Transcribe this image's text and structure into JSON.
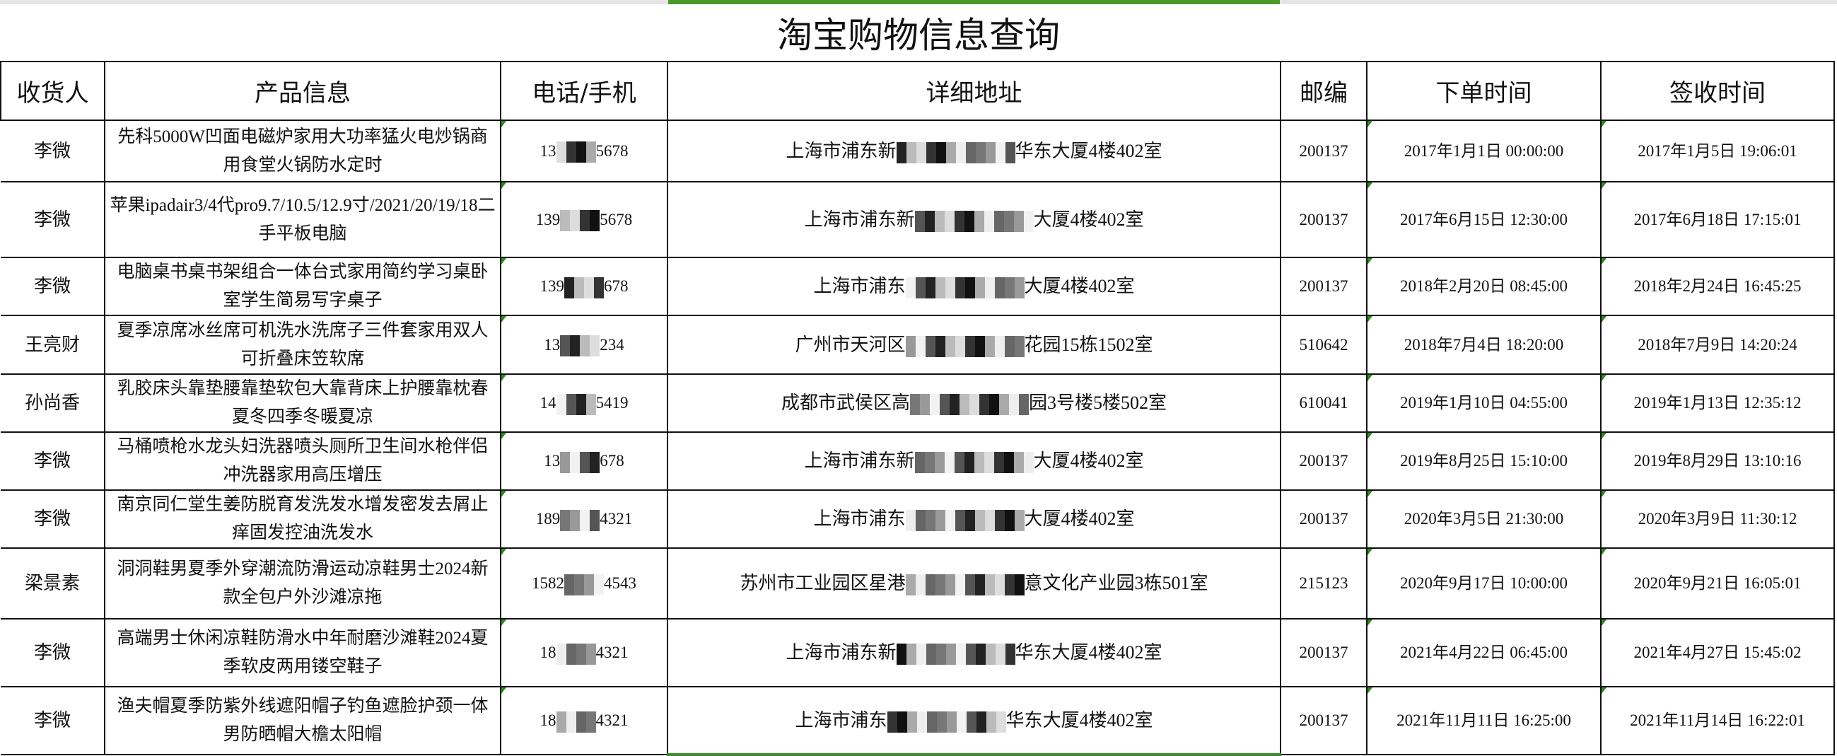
{
  "accent_color": "#4a9a2a",
  "title": "淘宝购物信息查询",
  "headers": [
    "收货人",
    "产品信息",
    "电话/手机",
    "详细地址",
    "邮编",
    "下单时间",
    "签收时间"
  ],
  "rows": [
    {
      "name": "李微",
      "product": "先科5000W凹面电磁炉家用大功率猛火电炒锅商用食堂火锅防水定时",
      "phone_prefix": "13",
      "phone_suffix": "5678",
      "addr_prefix": "上海市浦东新",
      "addr_suffix": "华东大厦4楼402室",
      "zip": "200137",
      "order_time": "2017年1月1日 00:00:00",
      "sign_time": "2017年1月5日 19:06:01"
    },
    {
      "name": "李微",
      "product": "苹果ipadair3/4代pro9.7/10.5/12.9寸/2021/20/19/18二手平板电脑",
      "phone_prefix": "139",
      "phone_suffix": "5678",
      "addr_prefix": "上海市浦东新",
      "addr_suffix": "大厦4楼402室",
      "zip": "200137",
      "order_time": "2017年6月15日 12:30:00",
      "sign_time": "2017年6月18日 17:15:01"
    },
    {
      "name": "李微",
      "product": "电脑桌书桌书架组合一体台式家用简约学习桌卧室学生简易写字桌子",
      "phone_prefix": "139",
      "phone_suffix": "678",
      "addr_prefix": "上海市浦东",
      "addr_suffix": "大厦4楼402室",
      "zip": "200137",
      "order_time": "2018年2月20日 08:45:00",
      "sign_time": "2018年2月24日 16:45:25"
    },
    {
      "name": "王亮财",
      "product": "夏季凉席冰丝席可机洗水洗席子三件套家用双人可折叠床笠软席",
      "phone_prefix": "13",
      "phone_suffix": "234",
      "addr_prefix": "广州市天河区",
      "addr_suffix": "花园15栋1502室",
      "zip": "510642",
      "order_time": "2018年7月4日 18:20:00",
      "sign_time": "2018年7月9日 14:20:24"
    },
    {
      "name": "孙尚香",
      "product": "乳胶床头靠垫腰靠垫软包大靠背床上护腰靠枕春夏冬四季冬暖夏凉",
      "phone_prefix": "14",
      "phone_suffix": "5419",
      "addr_prefix": "成都市武侯区高",
      "addr_suffix": "园3号楼5楼502室",
      "zip": "610041",
      "order_time": "2019年1月10日 04:55:00",
      "sign_time": "2019年1月13日 12:35:12"
    },
    {
      "name": "李微",
      "product": "马桶喷枪水龙头妇洗器喷头厕所卫生间水枪伴侣冲洗器家用高压增压",
      "phone_prefix": "13",
      "phone_suffix": "678",
      "addr_prefix": "上海市浦东新",
      "addr_suffix": "大厦4楼402室",
      "zip": "200137",
      "order_time": "2019年8月25日 15:10:00",
      "sign_time": "2019年8月29日 13:10:16"
    },
    {
      "name": "李微",
      "product": "南京同仁堂生姜防脱育发洗发水增发密发去屑止痒固发控油洗发水",
      "phone_prefix": "189",
      "phone_suffix": "4321",
      "addr_prefix": "上海市浦东",
      "addr_suffix": "大厦4楼402室",
      "zip": "200137",
      "order_time": "2020年3月5日 21:30:00",
      "sign_time": "2020年3月9日 11:30:12"
    },
    {
      "name": "梁景素",
      "product": "洞洞鞋男夏季外穿潮流防滑运动凉鞋男士2024新款全包户外沙滩凉拖",
      "phone_prefix": "1582",
      "phone_suffix": "4543",
      "addr_prefix": "苏州市工业园区星港",
      "addr_suffix": "意文化产业园3栋501室",
      "zip": "215123",
      "order_time": "2020年9月17日 10:00:00",
      "sign_time": "2020年9月21日 16:05:01"
    },
    {
      "name": "李微",
      "product": "高端男士休闲凉鞋防滑水中年耐磨沙滩鞋2024夏季软皮两用镂空鞋子",
      "phone_prefix": "18",
      "phone_suffix": "4321",
      "addr_prefix": "上海市浦东新",
      "addr_suffix": "华东大厦4楼402室",
      "zip": "200137",
      "order_time": "2021年4月22日 06:45:00",
      "sign_time": "2021年4月27日 15:45:02"
    },
    {
      "name": "李微",
      "product": "渔夫帽夏季防紫外线遮阳帽子钓鱼遮脸护颈一体男防晒帽大檐太阳帽",
      "phone_prefix": "18",
      "phone_suffix": "4321",
      "addr_prefix": "上海市浦东",
      "addr_suffix": "华东大厦4楼402室",
      "zip": "200137",
      "order_time": "2021年11月11日 16:25:00",
      "sign_time": "2021年11月14日 16:22:01"
    }
  ]
}
